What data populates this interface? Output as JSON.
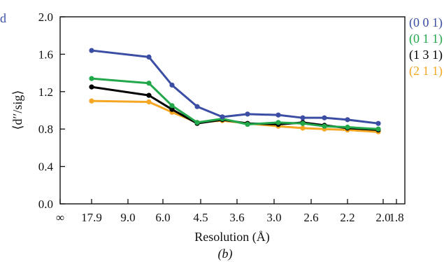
{
  "chart_data": {
    "type": "line",
    "panel_label": "(b)",
    "corner_label": "d",
    "xlabel": "Resolution (Å)",
    "ylabel": "⟨d′′/sig⟩",
    "x_tick_labels": [
      "∞",
      "17.9",
      "9.0",
      "6.0",
      "4.5",
      "3.6",
      "3.0",
      "2.6",
      "2.2",
      "2.0",
      "1.8"
    ],
    "y_tick_labels": [
      "0.0",
      "0.4",
      "0.8",
      "1.2",
      "1.6",
      "2.0"
    ],
    "ylim": [
      0,
      2.0
    ],
    "grid": false,
    "legend_position": "right",
    "x": [
      17.9,
      7.0,
      5.6,
      4.5,
      3.8,
      3.3,
      2.9,
      2.55,
      2.3,
      2.1,
      1.9
    ],
    "series": [
      {
        "name": "(0 0 1)",
        "color": "#3b4ea3",
        "values": [
          1.64,
          1.57,
          1.27,
          1.04,
          0.93,
          0.96,
          0.95,
          0.92,
          0.92,
          0.9,
          0.86
        ]
      },
      {
        "name": "(0 1 1)",
        "color": "#22a84a",
        "values": [
          1.34,
          1.29,
          1.05,
          0.87,
          0.91,
          0.85,
          0.87,
          0.86,
          0.83,
          0.82,
          0.8
        ]
      },
      {
        "name": "(1 3 1)",
        "color": "#000000",
        "values": [
          1.25,
          1.16,
          1.01,
          0.86,
          0.9,
          0.86,
          0.85,
          0.87,
          0.84,
          0.81,
          0.79
        ]
      },
      {
        "name": "(2 1 1)",
        "color": "#f5a623",
        "values": [
          1.1,
          1.09,
          0.98,
          0.87,
          0.89,
          0.86,
          0.83,
          0.81,
          0.8,
          0.79,
          0.77
        ]
      }
    ]
  }
}
